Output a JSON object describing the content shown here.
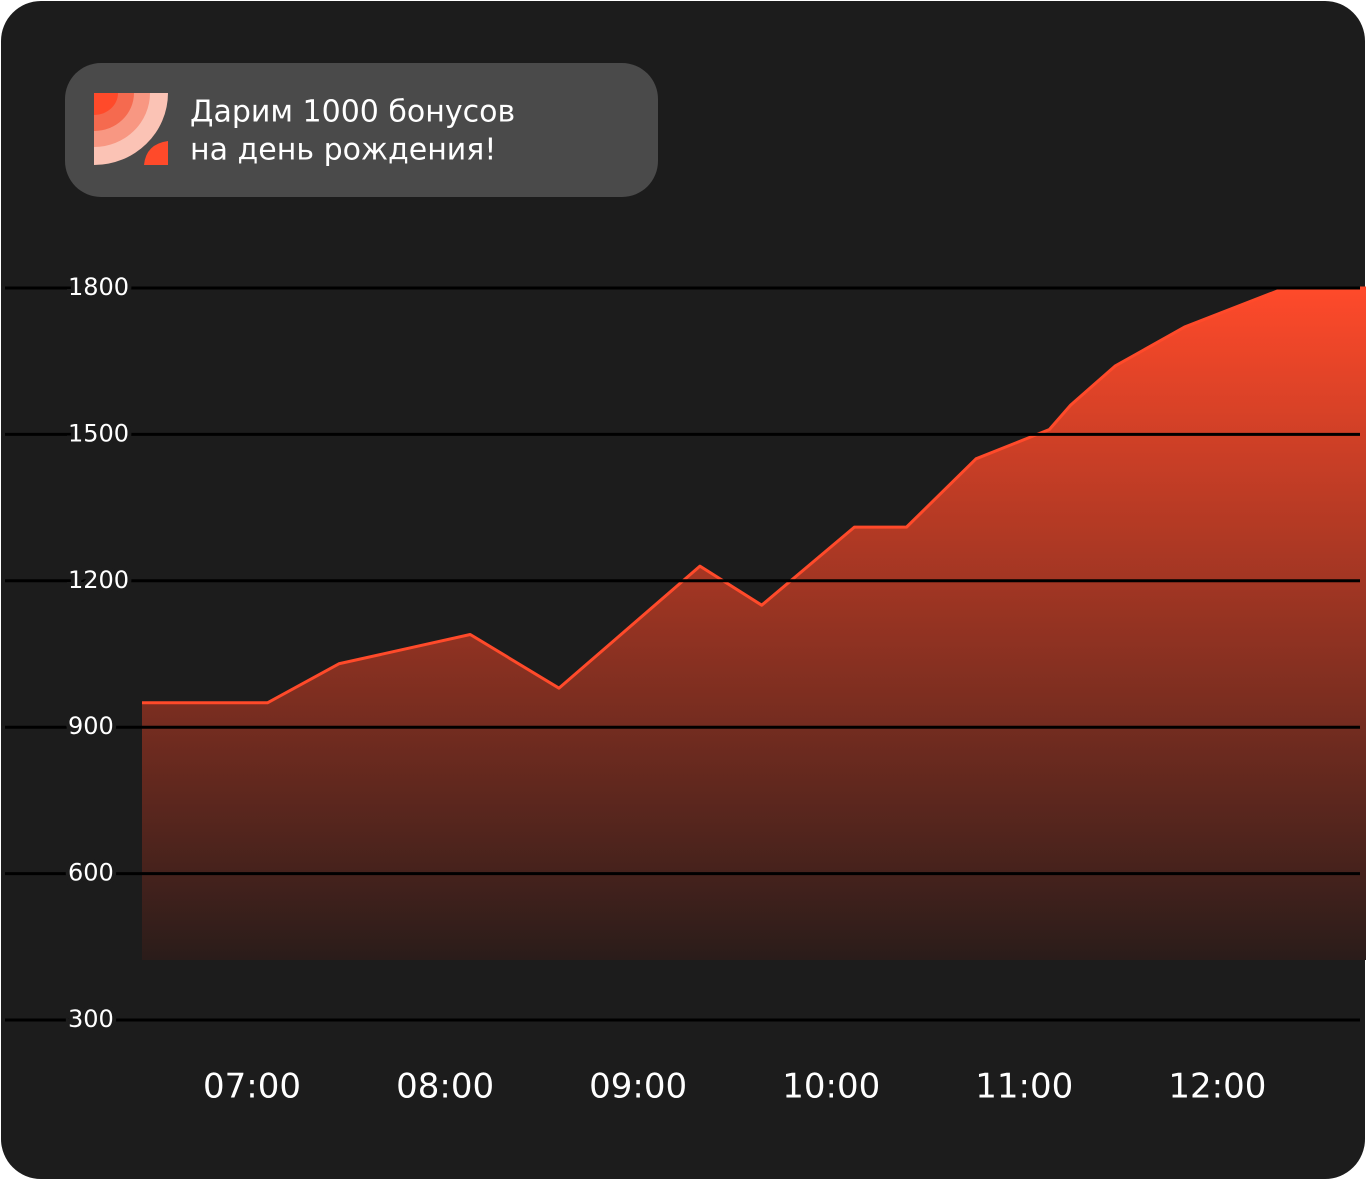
{
  "banner": {
    "lines": [
      "Дарим 1000 бонусов",
      "на день рождения!"
    ]
  },
  "chart_data": {
    "type": "area",
    "x": [
      6.43,
      7.08,
      7.45,
      8.13,
      8.59,
      9.32,
      9.64,
      10.12,
      10.39,
      10.75,
      11.13,
      11.24,
      11.47,
      11.83,
      12.35,
      12.77
    ],
    "values": [
      950,
      950,
      1030,
      1090,
      980,
      1230,
      1150,
      1310,
      1310,
      1450,
      1510,
      1560,
      1640,
      1720,
      1800,
      1800
    ],
    "color": "#ff4a2a",
    "xlim": [
      6.43,
      12.77
    ],
    "xticks": [
      {
        "value": 7,
        "label": "07:00"
      },
      {
        "value": 8,
        "label": "08:00"
      },
      {
        "value": 9,
        "label": "09:00"
      },
      {
        "value": 10,
        "label": "10:00"
      },
      {
        "value": 11,
        "label": "11:00"
      },
      {
        "value": 12,
        "label": "12:00"
      }
    ],
    "ylim": [
      300,
      1800
    ],
    "yticks": [
      300,
      600,
      900,
      1200,
      1500,
      1800
    ],
    "grid": true
  }
}
